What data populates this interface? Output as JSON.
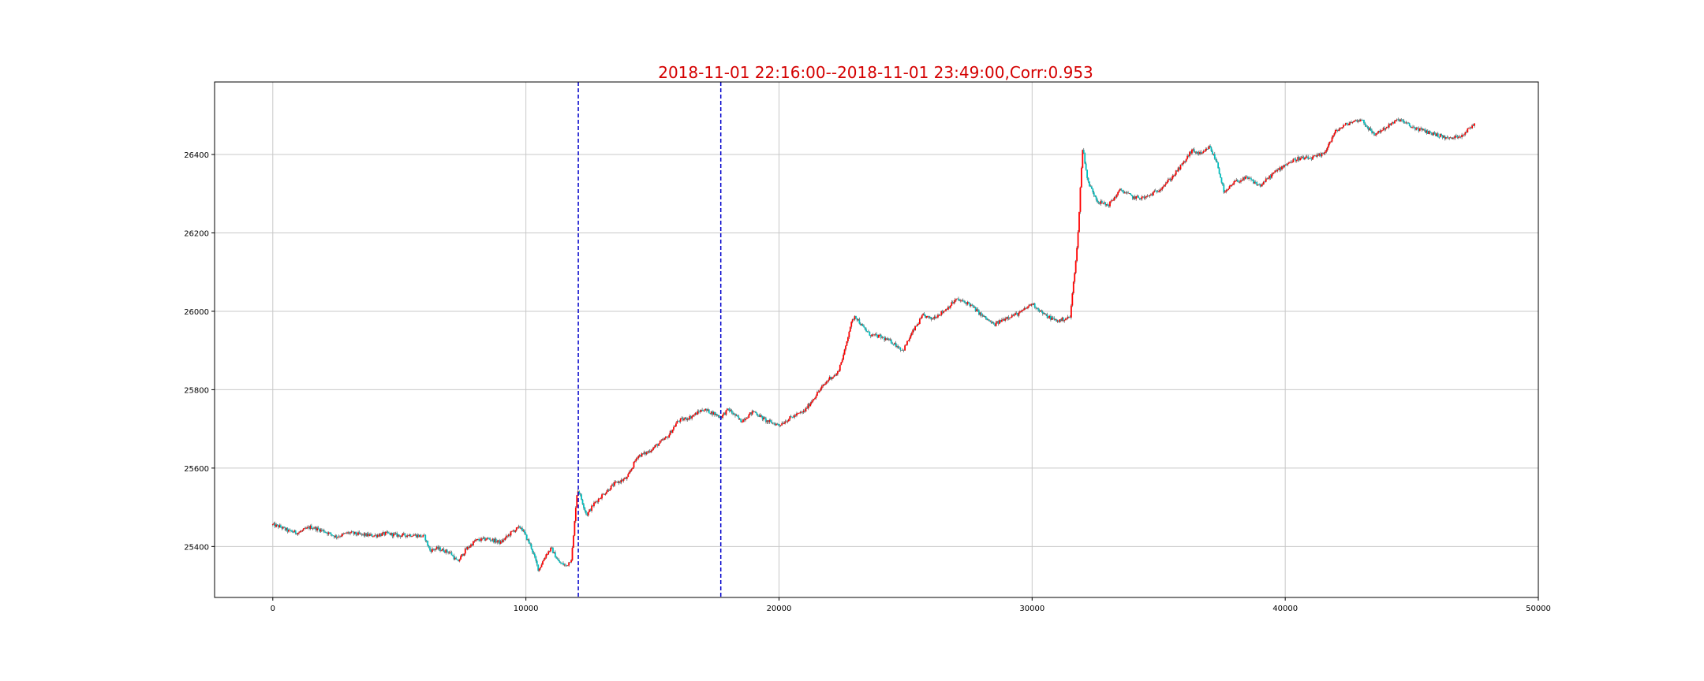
{
  "chart_data": {
    "type": "line",
    "title": "2018-11-01 22:16:00--2018-11-01 23:49:00,Corr:0.953",
    "xlabel": "",
    "ylabel": "",
    "xlim": [
      -2300,
      50000
    ],
    "ylim": [
      25270,
      26585
    ],
    "x_ticks": [
      0,
      10000,
      20000,
      30000,
      40000,
      50000
    ],
    "y_ticks": [
      25400,
      25600,
      25800,
      26000,
      26200,
      26400
    ],
    "grid": true,
    "legend": "none",
    "vertical_lines": [
      12070,
      17700
    ],
    "colors": {
      "title": "#d40000",
      "up_candle": "#ff0000",
      "down_candle": "#00bfbf",
      "wick": "#404040",
      "vline": "#0000cc",
      "grid": "#c8c8c8"
    },
    "series": [
      {
        "x": [
          0,
          300,
          600,
          1000,
          1500,
          2000,
          2500,
          3000,
          3500,
          4000,
          4500,
          5000,
          5500,
          6000,
          6200,
          6500,
          7000,
          7300,
          7600,
          8000,
          8500,
          9000,
          9500,
          9800,
          10200,
          10500,
          10800,
          11000,
          11300,
          11600,
          11800,
          11900,
          12000,
          12070,
          12400,
          12700,
          13000,
          13500,
          14000,
          14400,
          14800,
          15200,
          15600,
          16000,
          16500,
          17000,
          17400,
          17700,
          18000,
          18500,
          19000,
          19500,
          20000,
          20500,
          21000,
          21500,
          22000,
          22300,
          22600,
          22800,
          23000,
          23300,
          23600,
          24000,
          24500,
          24900,
          25300,
          25700,
          26000,
          26500,
          27000,
          27500,
          28000,
          28500,
          29000,
          29500,
          30000,
          30500,
          31000,
          31500,
          31800,
          31900,
          32000,
          32200,
          32600,
          33000,
          33500,
          34000,
          34500,
          35000,
          35500,
          36000,
          36300,
          36700,
          37000,
          37300,
          37600,
          38000,
          38500,
          39000,
          39500,
          40000,
          40500,
          41000,
          41500,
          42000,
          42500,
          43000,
          43500,
          44000,
          44500,
          45000,
          45500,
          46000,
          46500,
          47000,
          47500
        ],
        "y": [
          25455,
          25450,
          25440,
          25435,
          25450,
          25440,
          25425,
          25435,
          25430,
          25428,
          25433,
          25428,
          25430,
          25425,
          25390,
          25395,
          25385,
          25360,
          25390,
          25415,
          25420,
          25410,
          25440,
          25450,
          25400,
          25340,
          25380,
          25395,
          25360,
          25350,
          25370,
          25440,
          25530,
          25545,
          25480,
          25510,
          25530,
          25560,
          25575,
          25630,
          25640,
          25660,
          25680,
          25720,
          25730,
          25750,
          25740,
          25730,
          25750,
          25720,
          25745,
          25720,
          25710,
          25730,
          25745,
          25790,
          25830,
          25840,
          25900,
          25960,
          25990,
          25960,
          25940,
          25935,
          25920,
          25900,
          25950,
          25990,
          25980,
          26000,
          26030,
          26020,
          25990,
          25965,
          25985,
          25995,
          26020,
          25990,
          25975,
          25985,
          26180,
          26310,
          26420,
          26330,
          26280,
          26270,
          26310,
          26290,
          26290,
          26310,
          26340,
          26380,
          26410,
          26400,
          26420,
          26380,
          26300,
          26330,
          26340,
          26320,
          26350,
          26375,
          26390,
          26390,
          26400,
          26460,
          26480,
          26490,
          26450,
          26470,
          26490,
          26470,
          26460,
          26450,
          26440,
          26450,
          26480
        ]
      }
    ]
  }
}
